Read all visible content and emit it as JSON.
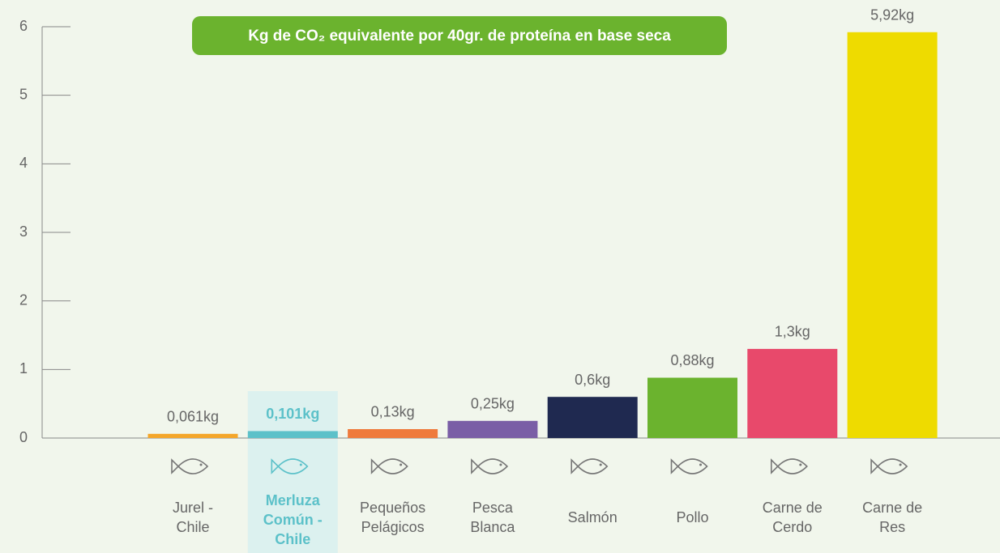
{
  "chart_data": {
    "type": "bar",
    "title": "Kg de CO₂ equivalente por 40gr. de proteína en base seca",
    "categories": [
      "Jurel -\nChile",
      "Merluza\nComún -\nChile",
      "Pequeños\nPelágicos",
      "Pesca\nBlanca",
      "Salmón",
      "Pollo",
      "Carne de\nCerdo",
      "Carne de\nRes"
    ],
    "values": [
      0.061,
      0.101,
      0.13,
      0.25,
      0.6,
      0.88,
      1.3,
      5.92
    ],
    "value_labels": [
      "0,061kg",
      "0,101kg",
      "0,13kg",
      "0,25kg",
      "0,6kg",
      "0,88kg",
      "1,3kg",
      "5,92kg"
    ],
    "colors": [
      "#f4a62a",
      "#5cc1c9",
      "#ef7a3c",
      "#7a5ea6",
      "#1f2950",
      "#6bb32e",
      "#e8496b",
      "#eedb00"
    ],
    "highlight": 1,
    "ylim": [
      0,
      6
    ],
    "yticks": [
      0,
      1,
      2,
      3,
      4,
      5,
      6
    ]
  }
}
